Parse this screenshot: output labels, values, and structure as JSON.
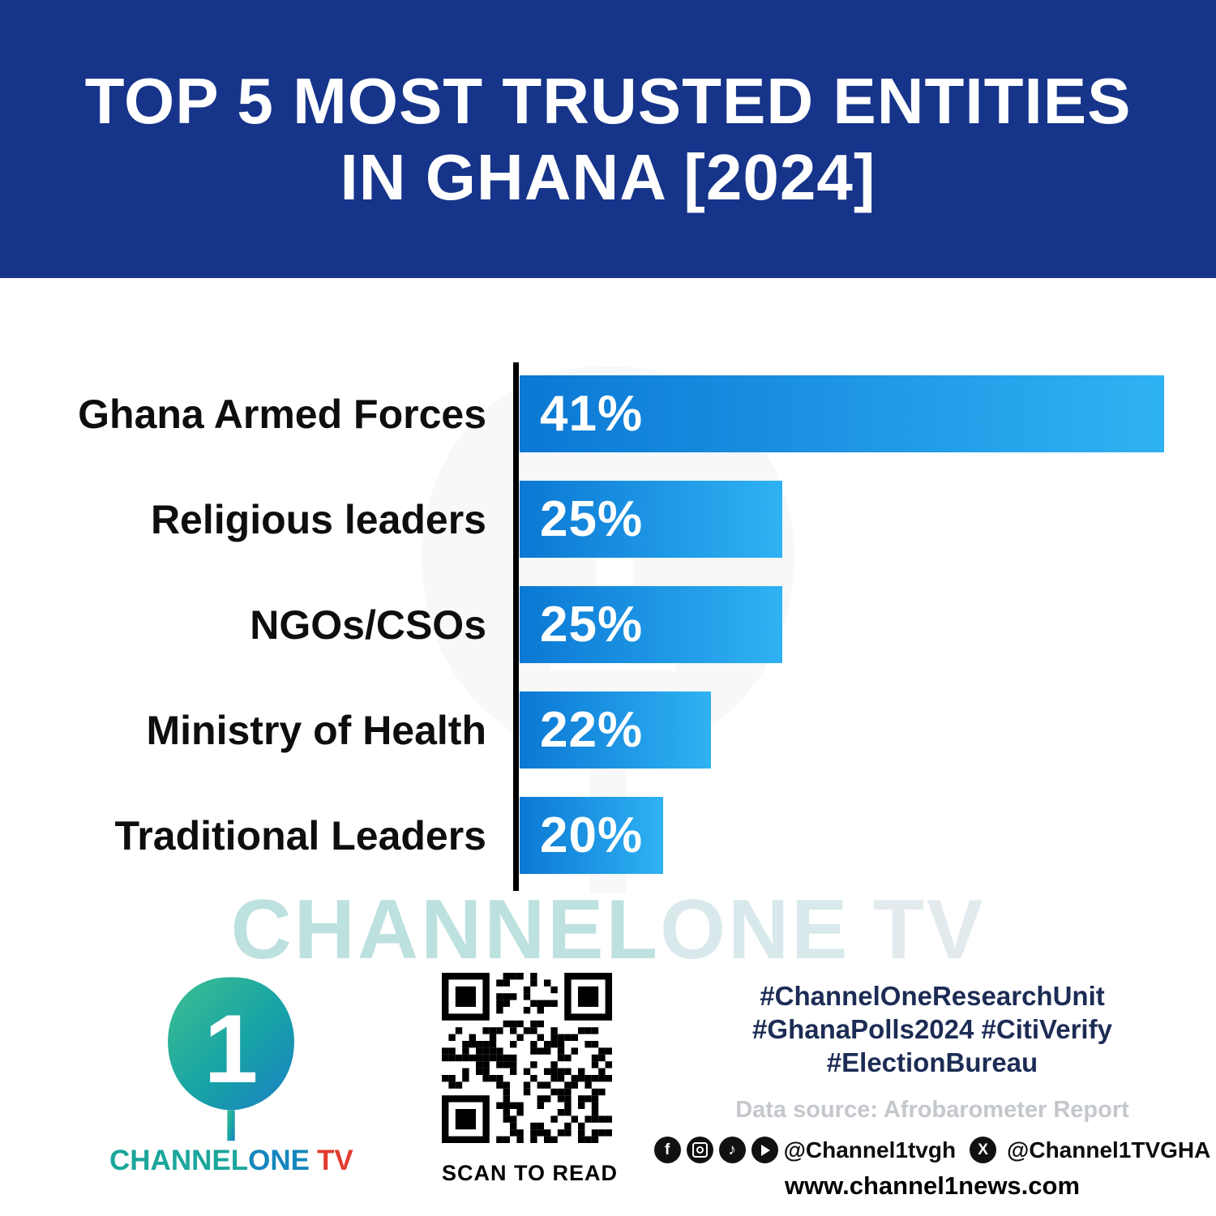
{
  "header": {
    "title_line1": "TOP 5 MOST TRUSTED ENTITIES",
    "title_line2": "IN GHANA [2024]"
  },
  "chart_data": {
    "type": "bar",
    "orientation": "horizontal",
    "title": "TOP 5 MOST TRUSTED ENTITIES IN GHANA [2024]",
    "categories": [
      "Ghana Armed Forces",
      "Religious leaders",
      "NGOs/CSOs",
      "Ministry of Health",
      "Traditional Leaders"
    ],
    "values": [
      41,
      25,
      25,
      22,
      20
    ],
    "value_labels": [
      "41%",
      "25%",
      "25%",
      "22%",
      "20%"
    ],
    "unit": "percent",
    "xlim": [
      0,
      41
    ],
    "grid": false,
    "legend": false,
    "bar_color_start": "#0b78d4",
    "bar_color_end": "#2fb2f3"
  },
  "watermark": {
    "part1": "CHANNEL",
    "part2": "ONE",
    "part3": "TV"
  },
  "footer": {
    "logo": {
      "digit": "1",
      "word_channel": "CHANNEL",
      "word_one": "ONE",
      "word_tv": "TV"
    },
    "qr_caption": "SCAN TO READ",
    "hashtags": [
      "#ChannelOneResearchUnit",
      "#GhanaPolls2024 #CitiVerify",
      "#ElectionBureau"
    ],
    "data_source": "Data source: Afrobarometer Report",
    "social": {
      "facebook_glyph": "f",
      "tiktok_glyph": "♪",
      "x_glyph": "X",
      "handle1": "@Channel1tvgh",
      "handle2": "@Channel1TVGHA"
    },
    "website": "www.channel1news.com"
  },
  "colors": {
    "header_bg": "#16348a",
    "bar_gradient_start": "#0b78d4",
    "bar_gradient_end": "#2fb2f3",
    "hashtag_navy": "#1c2c55",
    "logo_teal": "#1ba69b",
    "logo_blue": "#1487bd",
    "tv_red": "#e23b30",
    "source_gray": "#c4c8cd"
  }
}
